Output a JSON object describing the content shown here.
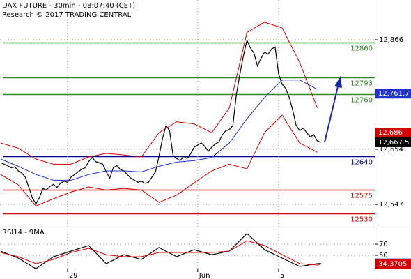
{
  "chart_data": [
    {
      "type": "line",
      "title": "DAX FUTURE - 30min - 08:07:40 (CET)",
      "subtitle": "Research © 2017 TRADING CENTRAL",
      "categories": [
        null,
        null,
        null,
        null,
        null,
        null,
        null,
        null,
        null,
        null,
        null,
        null,
        null,
        null,
        null,
        null,
        null,
        null,
        null,
        "29",
        null,
        null,
        null,
        null,
        null,
        null,
        null,
        null,
        null,
        null,
        null,
        null,
        null,
        null,
        null,
        null,
        null,
        null,
        null,
        null,
        null,
        null,
        null,
        null,
        null,
        null,
        null,
        null,
        null,
        null,
        null,
        null,
        null,
        null,
        null,
        null,
        "Jun",
        null,
        null,
        null,
        null,
        null,
        null,
        null,
        null,
        null,
        null,
        null,
        null,
        null,
        null,
        null,
        null,
        null,
        null,
        null,
        null,
        null,
        null,
        "5",
        null,
        null,
        null,
        null,
        null,
        null,
        null,
        null,
        null,
        null,
        null,
        null
      ],
      "ylim": [
        12508,
        12943
      ],
      "yticks": [
        {
          "value": 12866,
          "label": "12,866"
        },
        {
          "value": 12654,
          "label": "12,654"
        },
        {
          "value": 12547,
          "label": "12,547"
        }
      ],
      "grid": true,
      "levels": [
        {
          "value": 12860,
          "color": "#2e8b22"
        },
        {
          "value": 12793,
          "color": "#2e8b22"
        },
        {
          "value": 12760,
          "color": "#2e8b22"
        },
        {
          "value": 12640,
          "color": "#00008b"
        },
        {
          "value": 12575,
          "color": "#d00000"
        },
        {
          "value": 12530,
          "color": "#d00000"
        }
      ],
      "series": [
        {
          "color": "#000000",
          "values": [
            12628,
            12625,
            12622,
            12618,
            12620,
            12612,
            12608,
            12600,
            12580,
            12560,
            12548,
            12560,
            12578,
            12575,
            12582,
            12586,
            12580,
            12588,
            12592,
            12590,
            12600,
            12605,
            12610,
            12615,
            12618,
            12630,
            12638,
            12630,
            12628,
            12625,
            12610,
            12598,
            12618,
            12622,
            12615,
            12612,
            12605,
            12598,
            12594,
            12590,
            12592,
            12588,
            12590,
            12600,
            12610,
            12640,
            12675,
            12700,
            12690,
            12642,
            12636,
            12632,
            12640,
            12636,
            12645,
            12658,
            12662,
            12666,
            12660,
            12650,
            12658,
            12664,
            12668,
            12682,
            12690,
            12692,
            12700,
            12760,
            12800,
            12835,
            12865,
            12850,
            12840,
            12815,
            12830,
            12842,
            12838,
            12848,
            12852,
            12800,
            12780,
            12772,
            12755,
            12730,
            12700,
            12690,
            12695,
            12686,
            12678,
            12682,
            12670,
            12667.5
          ]
        },
        {
          "color": "#d00000",
          "x": [
            0,
            5,
            10,
            15,
            20,
            25,
            30,
            35,
            40,
            45,
            50,
            55,
            60,
            65,
            70,
            75,
            80,
            85,
            90
          ],
          "values": [
            12666,
            12656,
            12635,
            12625,
            12625,
            12639,
            12646,
            12643,
            12639,
            12686,
            12707,
            12703,
            12686,
            12734,
            12880,
            12900,
            12889,
            12822,
            12734
          ]
        },
        {
          "color": "#2233cc",
          "x": [
            0,
            5,
            10,
            15,
            20,
            25,
            30,
            35,
            40,
            45,
            50,
            55,
            60,
            65,
            70,
            75,
            80,
            85,
            90
          ],
          "values": [
            12635,
            12621,
            12605,
            12594,
            12594,
            12605,
            12612,
            12612,
            12610,
            12621,
            12629,
            12632,
            12638,
            12666,
            12713,
            12754,
            12788,
            12788,
            12770
          ]
        },
        {
          "color": "#d00000",
          "x": [
            0,
            5,
            10,
            15,
            20,
            25,
            30,
            35,
            40,
            45,
            50,
            55,
            60,
            65,
            70,
            75,
            80,
            85,
            90
          ],
          "values": [
            12605,
            12585,
            12544,
            12558,
            12571,
            12581,
            12575,
            12578,
            12575,
            12551,
            12565,
            12589,
            12612,
            12625,
            12616,
            12686,
            12720,
            12666,
            12648
          ]
        }
      ],
      "markers": [
        {
          "value": 12761.7,
          "label": "12,761.7",
          "color": "#2233cc"
        },
        {
          "value": 12686,
          "label": "12,686",
          "color": "#d00000"
        },
        {
          "value": 12667.5,
          "label": "12,667.5",
          "color": "#000000"
        }
      ]
    },
    {
      "type": "line",
      "title": "RSI14 - 9MA",
      "ylim": [
        7.5,
        100
      ],
      "yticks": [
        70,
        50
      ],
      "grid": true,
      "series": [
        {
          "color": "#000000",
          "label_color": "#2233cc",
          "x": [
            0,
            5,
            10,
            15,
            20,
            25,
            30,
            35,
            40,
            45,
            50,
            55,
            60,
            65,
            70,
            75,
            80,
            85,
            90,
            91
          ],
          "values": [
            57.5,
            45,
            26,
            47.5,
            57.5,
            67.5,
            35,
            51,
            42.5,
            64,
            47.5,
            60,
            51,
            57.5,
            89,
            60,
            45,
            30,
            35,
            35.42
          ]
        },
        {
          "color": "#d00000",
          "label_color": "#d00000",
          "x": [
            0,
            5,
            10,
            15,
            20,
            25,
            30,
            35,
            40,
            45,
            50,
            55,
            60,
            65,
            70,
            75,
            80,
            85,
            90,
            91
          ],
          "values": [
            55,
            47.5,
            35,
            42.5,
            55,
            62.5,
            51,
            47.5,
            47.5,
            55,
            55,
            55,
            55,
            57.5,
            76,
            67.5,
            51,
            35,
            32.5,
            34.3705
          ]
        }
      ]
    }
  ]
}
